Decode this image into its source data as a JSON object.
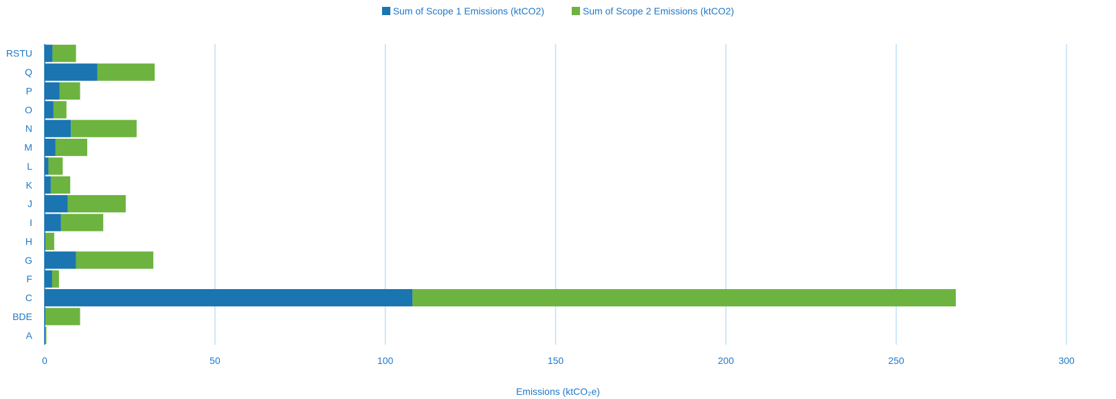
{
  "colors": {
    "scope1": "#1a75b0",
    "scope2": "#6db33f",
    "text": "#1f78c8",
    "grid": "#bfe0f5",
    "axis": "#1a75b0"
  },
  "chart_data": {
    "type": "bar",
    "orientation": "horizontal",
    "stacked": true,
    "categories": [
      "A",
      "BDE",
      "C",
      "F",
      "G",
      "H",
      "I",
      "J",
      "K",
      "L",
      "M",
      "N",
      "O",
      "P",
      "Q",
      "RSTU"
    ],
    "series": [
      {
        "name": "Sum of Scope 1 Emissions (ktCO2)",
        "color": "#1a75b0",
        "values": [
          0.2,
          0.2,
          108,
          2.2,
          9.2,
          0.2,
          4.8,
          6.8,
          1.8,
          1.1,
          3.2,
          7.7,
          2.6,
          4.4,
          15.5,
          2.3
        ]
      },
      {
        "name": "Sum of Scope 2 Emissions (ktCO2)",
        "color": "#6db33f",
        "values": [
          0.3,
          10.2,
          159.5,
          2.0,
          22.7,
          2.6,
          12.4,
          17.0,
          5.7,
          4.2,
          9.3,
          19.3,
          3.8,
          6.0,
          16.8,
          6.9
        ]
      }
    ],
    "xlabel": "Emissions (ktCO₂e)",
    "xlim": [
      0,
      300
    ],
    "xticks": [
      0,
      50,
      100,
      150,
      200,
      250,
      300
    ],
    "grid": true,
    "legend_position": "top"
  }
}
